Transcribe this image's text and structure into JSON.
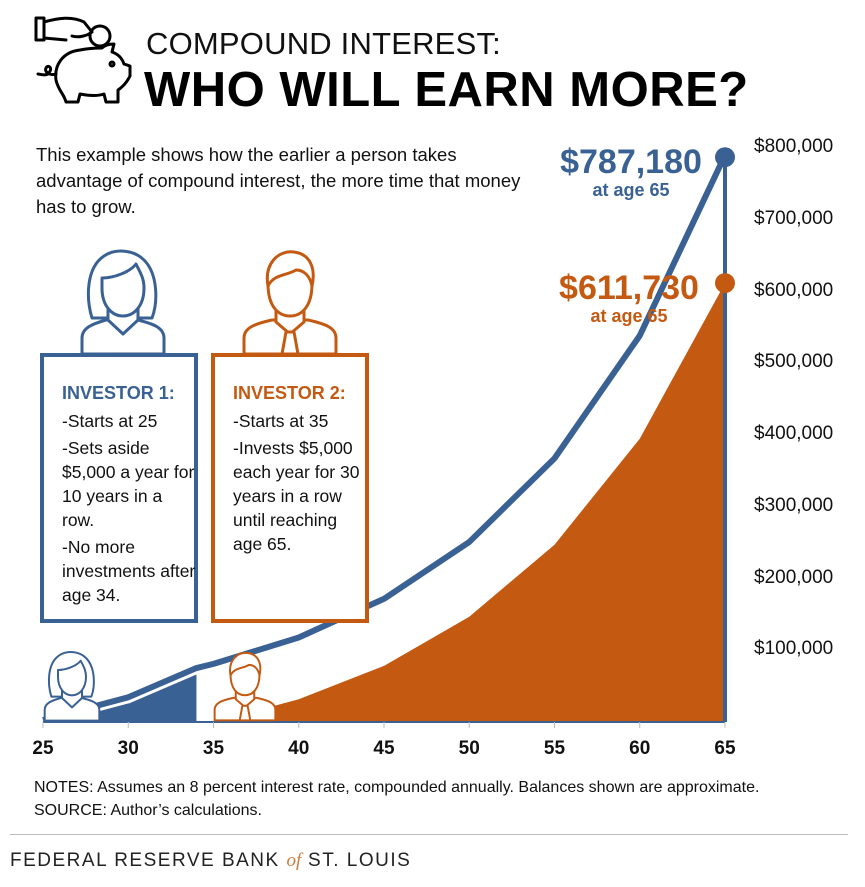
{
  "header": {
    "line1": "COMPOUND INTEREST:",
    "line2": "WHO WILL EARN MORE?",
    "icon": "piggy-bank-icon"
  },
  "description": "This example shows how the earlier a person takes advantage of compound interest, the more time that money has to grow.",
  "investor1": {
    "title": "INVESTOR 1:",
    "points": [
      "-Starts at 25",
      "-Sets aside $5,000 a year for 10 years in a row.",
      "-No more investments after age 34."
    ],
    "icon": "woman-icon"
  },
  "investor2": {
    "title": "INVESTOR 2:",
    "points": [
      "-Starts at 35",
      "-Invests $5,000 each year for 30 years in a row until reaching age 65."
    ],
    "icon": "man-icon"
  },
  "colors": {
    "investor1": "#3a6194",
    "investor2": "#c45a12"
  },
  "chart_data": {
    "type": "area",
    "xlim": [
      25,
      65
    ],
    "ylim": [
      0,
      800000
    ],
    "x_ticks": [
      "25",
      "30",
      "35",
      "40",
      "45",
      "50",
      "55",
      "60",
      "65"
    ],
    "y_ticks": [
      "$100,000",
      "$200,000",
      "$300,000",
      "$400,000",
      "$500,000",
      "$600,000",
      "$700,000",
      "$800,000"
    ],
    "grid": false,
    "series": [
      {
        "name": "INVESTOR 1",
        "color": "#3a6194",
        "x": [
          25,
          30,
          34,
          35,
          40,
          45,
          50,
          55,
          60,
          65
        ],
        "values": [
          0,
          31680,
          72432,
          78227,
          114940,
          168887,
          248146,
          364615,
          535740,
          787180
        ]
      },
      {
        "name": "INVESTOR 2",
        "color": "#c45a12",
        "x": [
          35,
          40,
          45,
          50,
          55,
          60,
          65
        ],
        "values": [
          0,
          31680,
          78227,
          146621,
          247115,
          394772,
          611730
        ]
      }
    ],
    "annotations": [
      {
        "value": "$787,180",
        "sub": "at age 65"
      },
      {
        "value": "$611,730",
        "sub": "at age 65"
      }
    ]
  },
  "notes": "NOTES: Assumes an 8 percent interest rate, compounded annually. Balances shown are approximate.",
  "source": "SOURCE: Author’s calculations.",
  "footer": {
    "logo_a": "FEDERAL RESERVE BANK ",
    "logo_of": "of",
    "logo_b": " ST. LOUIS"
  }
}
